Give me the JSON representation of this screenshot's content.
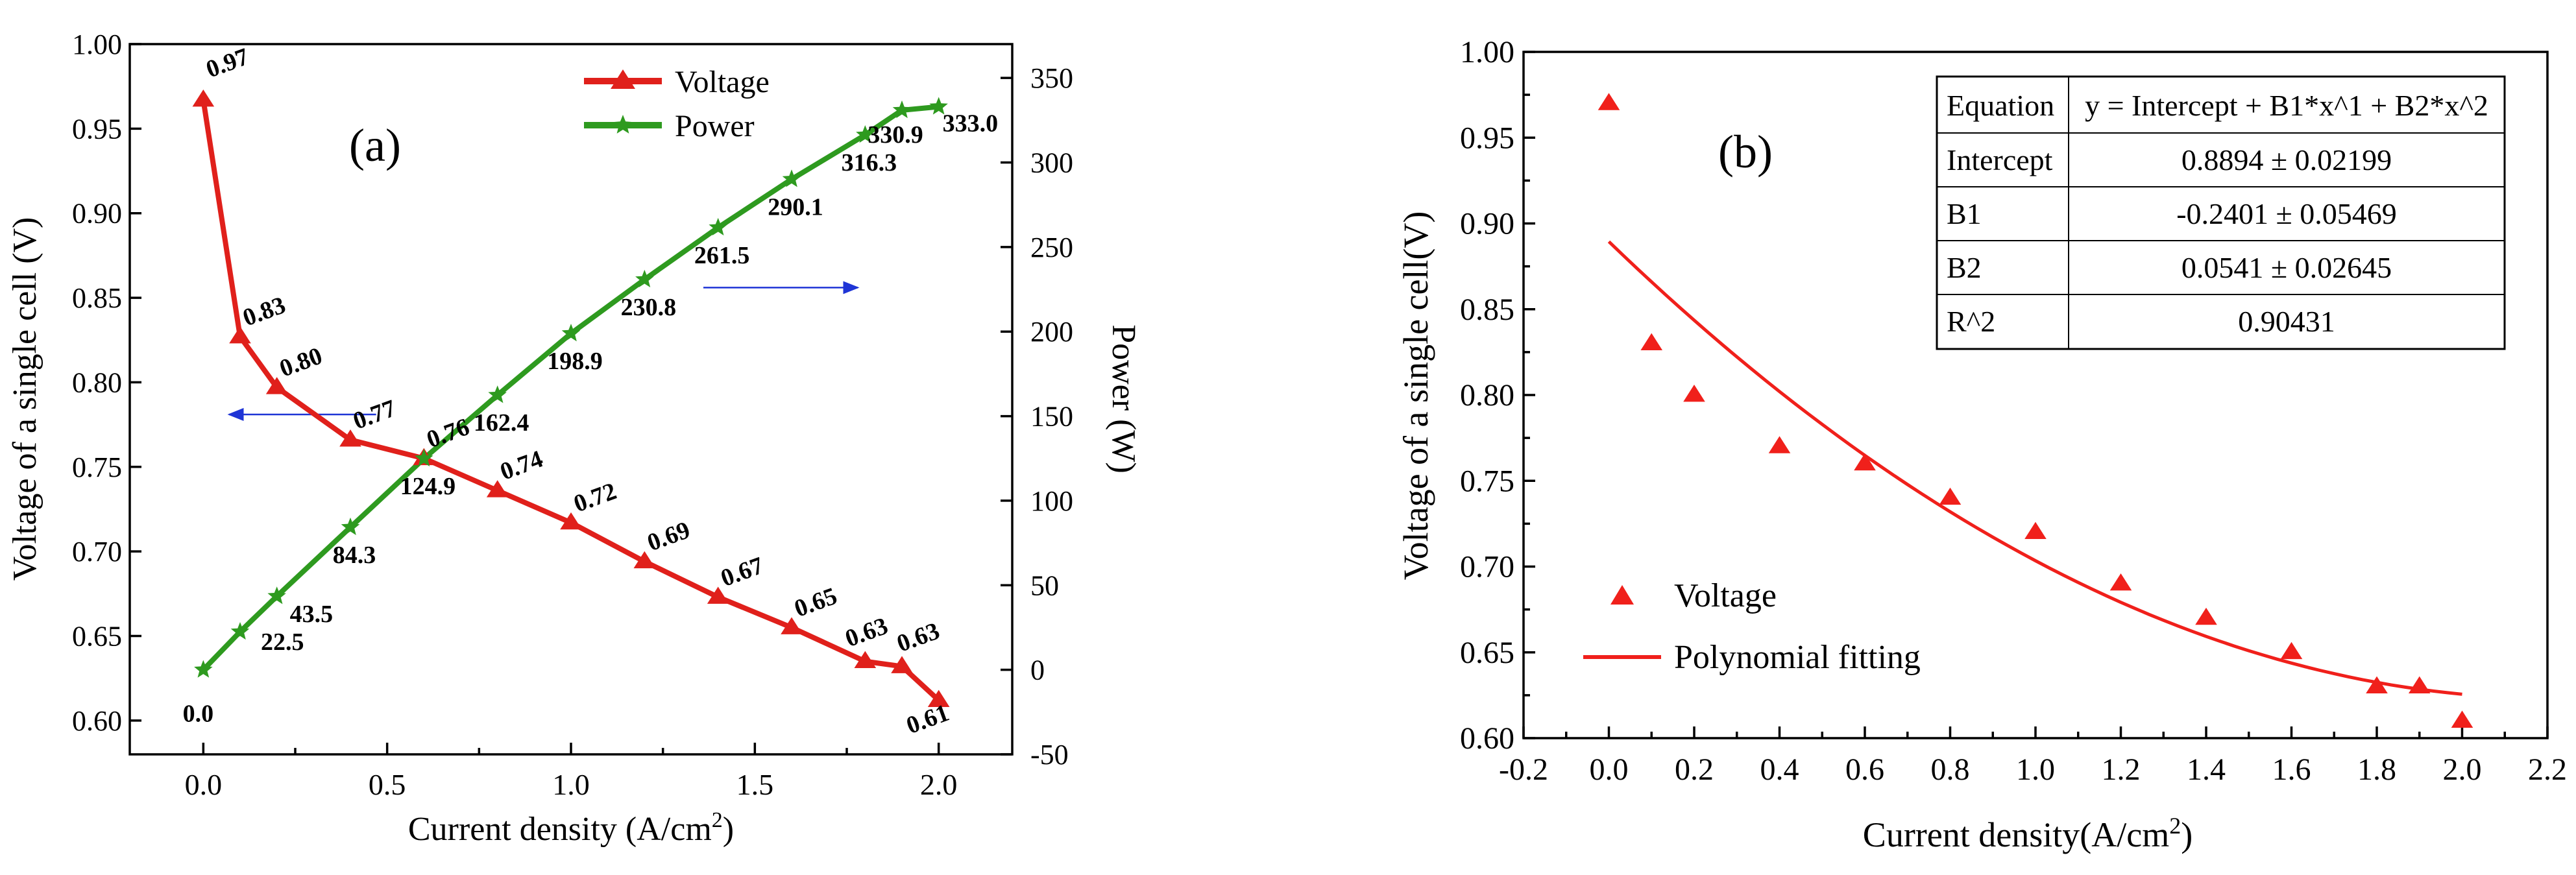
{
  "chart_data": [
    {
      "type": "line",
      "panel_label": "(a)",
      "xlabel": "Current density (A/cm",
      "xlabel_sup": "2",
      "xlabel_close": ")",
      "ylabel_left": "Voltage of a single cell (V)",
      "ylabel_right": "Power (W)",
      "xlim": [
        -0.2,
        2.2
      ],
      "ylim_left": [
        0.58,
        1.0
      ],
      "ylim_right": [
        -50,
        370
      ],
      "x_ticks": [
        "0.0",
        "0.5",
        "1.0",
        "1.5",
        "2.0"
      ],
      "y_left_ticks": [
        "0.60",
        "0.65",
        "0.70",
        "0.75",
        "0.80",
        "0.85",
        "0.90",
        "0.95",
        "1.00"
      ],
      "y_right_ticks": [
        "-50",
        "0",
        "50",
        "100",
        "150",
        "200",
        "250",
        "300",
        "350"
      ],
      "legend_position": "top-center",
      "colors": {
        "voltage": "#e0201b",
        "power": "#2e9a1f",
        "arrow": "#1f35d6"
      },
      "series": [
        {
          "name": "Voltage",
          "axis": "left",
          "marker": "triangle",
          "x": [
            0.0,
            0.1,
            0.2,
            0.4,
            0.6,
            0.8,
            1.0,
            1.2,
            1.4,
            1.6,
            1.8,
            1.9,
            2.0
          ],
          "y": [
            0.967,
            0.827,
            0.797,
            0.766,
            0.755,
            0.736,
            0.717,
            0.694,
            0.673,
            0.655,
            0.635,
            0.632,
            0.612
          ],
          "labels": [
            "0.97",
            "0.83",
            "0.80",
            "0.77",
            "0.76",
            "0.74",
            "0.72",
            "0.69",
            "0.67",
            "0.65",
            "0.63",
            "0.63",
            "0.61"
          ]
        },
        {
          "name": "Power",
          "axis": "right",
          "marker": "star",
          "x": [
            0.0,
            0.1,
            0.2,
            0.4,
            0.6,
            0.8,
            1.0,
            1.2,
            1.4,
            1.6,
            1.8,
            1.9,
            2.0
          ],
          "y": [
            0.0,
            22.5,
            43.5,
            84.3,
            124.9,
            162.4,
            198.9,
            230.8,
            261.5,
            290.1,
            316.3,
            330.9,
            333.0
          ],
          "labels": [
            "0.0",
            "22.5",
            "43.5",
            "84.3",
            "124.9",
            "162.4",
            "198.9",
            "230.8",
            "261.5",
            "290.1",
            "316.3",
            "330.9",
            "333.0"
          ]
        }
      ]
    },
    {
      "type": "scatter",
      "panel_label": "(b)",
      "xlabel": "Current density(A/cm",
      "xlabel_sup": "2",
      "xlabel_close": ")",
      "ylabel": "Voltage of a single cell(V)",
      "xlim": [
        -0.2,
        2.2
      ],
      "ylim": [
        0.6,
        1.0
      ],
      "x_ticks": [
        "-0.2",
        "0.0",
        "0.2",
        "0.4",
        "0.6",
        "0.8",
        "1.0",
        "1.2",
        "1.4",
        "1.6",
        "1.8",
        "2.0",
        "2.2"
      ],
      "y_ticks": [
        "0.60",
        "0.65",
        "0.70",
        "0.75",
        "0.80",
        "0.85",
        "0.90",
        "0.95",
        "1.00"
      ],
      "legend_position": "bottom-left",
      "colors": {
        "points": "#f0201b",
        "fit": "#f0201b"
      },
      "series": [
        {
          "name": "Voltage",
          "marker": "triangle",
          "x": [
            0.0,
            0.1,
            0.2,
            0.4,
            0.6,
            0.8,
            1.0,
            1.2,
            1.4,
            1.6,
            1.8,
            1.9,
            2.0
          ],
          "y": [
            0.97,
            0.83,
            0.8,
            0.77,
            0.76,
            0.74,
            0.72,
            0.69,
            0.67,
            0.65,
            0.63,
            0.63,
            0.61
          ]
        },
        {
          "name": "Polynomial fitting",
          "kind": "fit",
          "intercept": 0.8894,
          "b1": -0.2401,
          "b2": 0.0541,
          "x_range": [
            0.0,
            2.0
          ]
        }
      ],
      "fit_table": [
        [
          "Equation",
          "y = Intercept + B1*x^1 + B2*x^2"
        ],
        [
          "Intercept",
          "0.8894 ± 0.02199"
        ],
        [
          "B1",
          "-0.2401 ± 0.05469"
        ],
        [
          "B2",
          "0.0541 ± 0.02645"
        ],
        [
          "R^2",
          "0.90431"
        ]
      ]
    }
  ]
}
